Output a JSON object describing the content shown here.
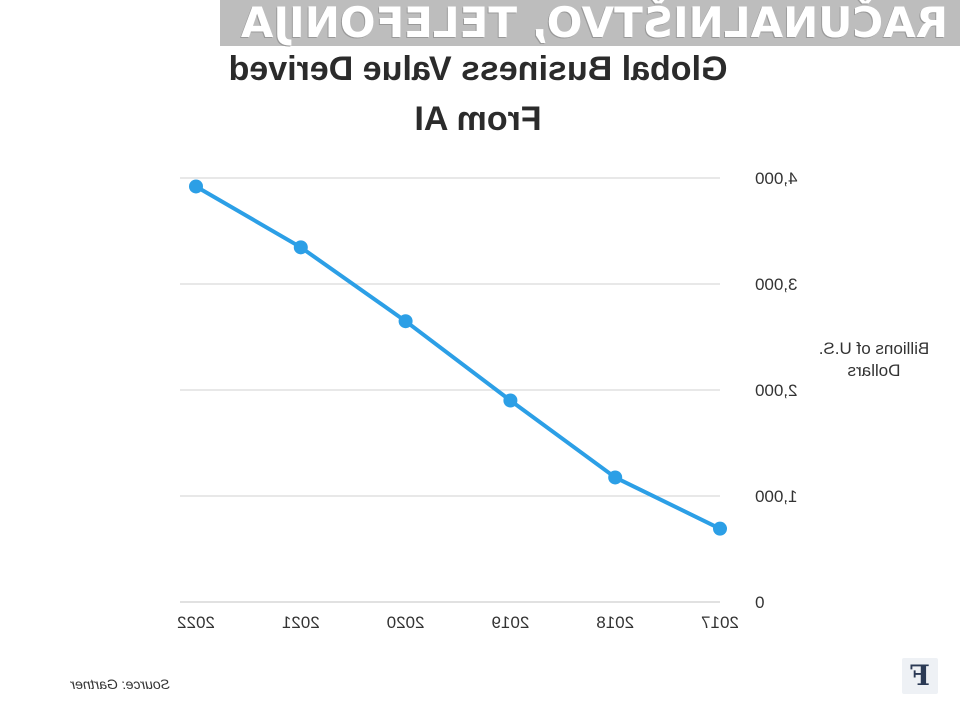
{
  "watermark": "RAČUNALNIŠTVO, TELEFONIJA",
  "chart_data": {
    "type": "line",
    "title": "Global Business Value Derived\nFrom AI",
    "ylabel": "Billions of U.S.\nDollars",
    "xlabel": "",
    "x": [
      "2017",
      "2018",
      "2019",
      "2020",
      "2021",
      "2022"
    ],
    "series": [
      {
        "values": [
          692,
          1175,
          1901,
          2649,
          3346,
          3920
        ]
      }
    ],
    "ylim": [
      0,
      4000
    ],
    "yticks": [
      "0",
      "1,000",
      "2,000",
      "3,000",
      "4,000"
    ],
    "grid": true,
    "legend": "none",
    "mirrored": true
  },
  "source": "Source: Gartner",
  "logo": "F",
  "colors": {
    "line": "#2c9fe6",
    "grid": "#d9d9d9",
    "watermark_bg": "#bdbdbd",
    "text": "#333333"
  }
}
